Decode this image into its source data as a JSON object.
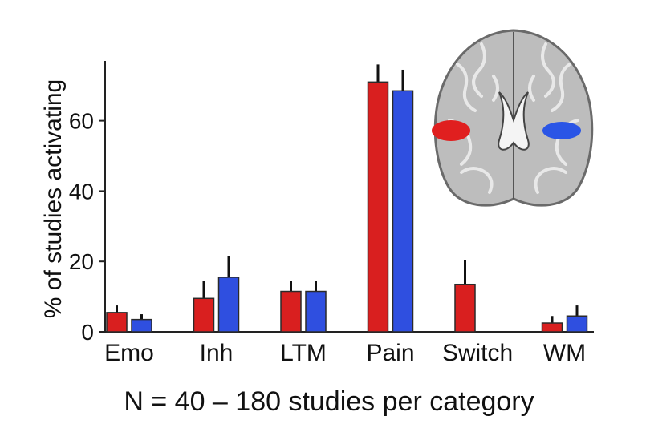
{
  "chart_data": {
    "type": "bar",
    "categories": [
      "Emo",
      "Inh",
      "LTM",
      "Pain",
      "Switch",
      "WM"
    ],
    "series": [
      {
        "color": "#d91f1f",
        "values": [
          5.5,
          9.5,
          11.5,
          71,
          13.5,
          2.5
        ],
        "errors": [
          2,
          5,
          3,
          5,
          7,
          2
        ]
      },
      {
        "color": "#2f4fe0",
        "values": [
          3.5,
          15.5,
          11.5,
          68.5,
          null,
          4.5
        ],
        "errors": [
          1.5,
          6,
          3,
          6,
          null,
          3
        ]
      }
    ],
    "ylabel": "% of studies activating",
    "xlabel": "N = 40 – 180 studies per category",
    "yticks": [
      0,
      20,
      40,
      60
    ],
    "ylim": [
      0,
      77
    ],
    "grid": false,
    "inset": "brain-axial-slice"
  }
}
